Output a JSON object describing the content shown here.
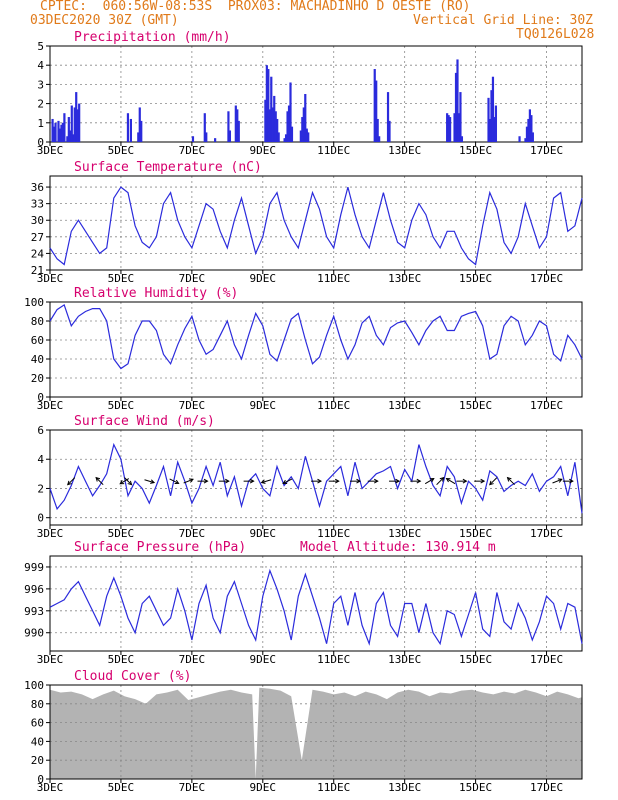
{
  "header": {
    "line1": "CPTEC:  060:56W-08:53S  PROX03: MACHADINHO D OESTE (RO)",
    "line2_left": "03DEC2020 30Z (GMT)",
    "line2_right": "Vertical Grid Line: 30Z",
    "line3_right": "TQ0126L028"
  },
  "colors": {
    "line": "#2b2bdc",
    "bar": "#2b2bdc",
    "cloud": "#b3b3b3",
    "title": "#d6006e",
    "header": "#e07a1a",
    "grid": "#888888"
  },
  "chart_data": [
    {
      "id": "precip",
      "type": "bar",
      "title": "Precipitation (mm/h)",
      "x_tick_labels": [
        "3DEC",
        "5DEC",
        "7DEC",
        "9DEC",
        "11DEC",
        "13DEC",
        "15DEC",
        "17DEC"
      ],
      "ylim": [
        0,
        5
      ],
      "yticks": [
        0,
        1,
        2,
        3,
        4,
        5
      ],
      "values_by_day": {
        "3": [
          0,
          1.2,
          0.8,
          1,
          0,
          1.1,
          0.7,
          0.9,
          1,
          1.5,
          0,
          0.3,
          1.3,
          0.6,
          1.9,
          0.4,
          1.8,
          2.6,
          1.7,
          2
        ],
        "5": [
          0,
          0,
          0,
          0,
          1.5,
          0,
          1.2,
          0,
          0,
          0,
          0,
          0.5,
          1.8,
          1.1,
          0
        ],
        "7": [
          0.3,
          0,
          0,
          0,
          0,
          0,
          0,
          0,
          1.5,
          0.5,
          0,
          0,
          0,
          0,
          0,
          0.2
        ],
        "8": [
          1.6,
          0.6,
          0,
          0,
          0,
          1.9,
          1.7,
          1.1,
          0
        ],
        "9": [
          0,
          2.2,
          4,
          3.8,
          1.7,
          3.4,
          1.8,
          2.4,
          1.6,
          1.2,
          0.5,
          0,
          0,
          0,
          0.2,
          0.4,
          1.6,
          1.9,
          3.1,
          0.8,
          0,
          0,
          0,
          0,
          0,
          0.6,
          1.3,
          1.8,
          2.5,
          0.7
        ],
        "10": [
          0,
          0,
          0.3,
          0,
          0,
          0.6,
          0.5
        ],
        "12": [
          0,
          0,
          0,
          3.8,
          3.2,
          1.2,
          0.3,
          0,
          0,
          0,
          0,
          0,
          2.6,
          1.1
        ],
        "14": [
          0,
          0,
          0,
          0,
          1.5,
          1.4,
          1.3,
          0,
          0,
          1.5,
          3.6,
          4.3,
          1.5,
          2.6,
          0.3
        ],
        "15": [
          0,
          0,
          0,
          0,
          0,
          0,
          0,
          0,
          2.3,
          1.2,
          2.7,
          3.4,
          1.3,
          1.9
        ],
        "16": [
          0,
          0,
          0,
          0,
          0,
          0.3,
          0,
          0,
          0,
          0.2,
          0.8,
          1.2,
          1.7,
          1.4,
          0.5
        ]
      }
    },
    {
      "id": "temp",
      "type": "line",
      "title": "Surface Temperature (nC)",
      "ylim": [
        21,
        38
      ],
      "yticks": [
        21,
        24,
        27,
        30,
        33,
        36
      ],
      "x": [
        3.0,
        3.2,
        3.4,
        3.6,
        3.8,
        4.0,
        4.2,
        4.4,
        4.6,
        4.8,
        5.0,
        5.2,
        5.4,
        5.6,
        5.8,
        6.0,
        6.2,
        6.4,
        6.6,
        6.8,
        7.0,
        7.2,
        7.4,
        7.6,
        7.8,
        8.0,
        8.2,
        8.4,
        8.6,
        8.8,
        9.0,
        9.2,
        9.4,
        9.6,
        9.8,
        10.0,
        10.2,
        10.4,
        10.6,
        10.8,
        11.0,
        11.2,
        11.4,
        11.6,
        11.8,
        12.0,
        12.2,
        12.4,
        12.6,
        12.8,
        13.0,
        13.2,
        13.4,
        13.6,
        13.8,
        14.0,
        14.2,
        14.4,
        14.6,
        14.8,
        15.0,
        15.2,
        15.4,
        15.6,
        15.8,
        16.0,
        16.2,
        16.4,
        16.6,
        16.8,
        17.0,
        17.2,
        17.4,
        17.6,
        17.8,
        18.0
      ],
      "y": [
        25,
        23,
        22,
        28,
        30,
        28,
        26,
        24,
        25,
        34,
        36,
        35,
        29,
        26,
        25,
        27,
        33,
        35,
        30,
        27,
        25,
        29,
        33,
        32,
        28,
        25,
        30,
        34,
        29,
        24,
        27,
        33,
        35,
        30,
        27,
        25,
        30,
        35,
        32,
        27,
        25,
        31,
        36,
        31,
        27,
        25,
        30,
        35,
        30,
        26,
        25,
        30,
        33,
        31,
        27,
        25,
        28,
        28,
        25,
        23,
        22,
        29,
        35,
        32,
        26,
        24,
        27,
        33,
        29,
        25,
        27,
        34,
        35,
        28,
        29,
        34
      ]
    },
    {
      "id": "rh",
      "type": "line",
      "title": "Relative Humidity (%)",
      "ylim": [
        0,
        100
      ],
      "yticks": [
        0,
        20,
        40,
        60,
        80,
        100
      ],
      "x": [
        3.0,
        3.2,
        3.4,
        3.6,
        3.8,
        4.0,
        4.2,
        4.4,
        4.6,
        4.8,
        5.0,
        5.2,
        5.4,
        5.6,
        5.8,
        6.0,
        6.2,
        6.4,
        6.6,
        6.8,
        7.0,
        7.2,
        7.4,
        7.6,
        7.8,
        8.0,
        8.2,
        8.4,
        8.6,
        8.8,
        9.0,
        9.2,
        9.4,
        9.6,
        9.8,
        10.0,
        10.2,
        10.4,
        10.6,
        10.8,
        11.0,
        11.2,
        11.4,
        11.6,
        11.8,
        12.0,
        12.2,
        12.4,
        12.6,
        12.8,
        13.0,
        13.2,
        13.4,
        13.6,
        13.8,
        14.0,
        14.2,
        14.4,
        14.6,
        14.8,
        15.0,
        15.2,
        15.4,
        15.6,
        15.8,
        16.0,
        16.2,
        16.4,
        16.6,
        16.8,
        17.0,
        17.2,
        17.4,
        17.6,
        17.8,
        18.0
      ],
      "y": [
        80,
        92,
        97,
        75,
        85,
        90,
        93,
        93,
        80,
        40,
        30,
        35,
        65,
        80,
        80,
        70,
        45,
        35,
        55,
        72,
        85,
        60,
        45,
        50,
        65,
        80,
        55,
        40,
        65,
        88,
        75,
        45,
        38,
        60,
        82,
        88,
        60,
        35,
        42,
        65,
        85,
        60,
        40,
        55,
        78,
        85,
        65,
        55,
        73,
        78,
        80,
        68,
        55,
        70,
        80,
        85,
        70,
        70,
        85,
        88,
        90,
        75,
        40,
        45,
        75,
        85,
        80,
        55,
        65,
        80,
        75,
        45,
        38,
        65,
        55,
        40
      ]
    },
    {
      "id": "wind",
      "type": "line",
      "title": "Surface Wind (m/s)",
      "ylim": [
        -0.5,
        6
      ],
      "yticks": [
        0,
        2,
        4,
        6
      ],
      "x": [
        3.0,
        3.2,
        3.4,
        3.6,
        3.8,
        4.0,
        4.2,
        4.4,
        4.6,
        4.8,
        5.0,
        5.2,
        5.4,
        5.6,
        5.8,
        6.0,
        6.2,
        6.4,
        6.6,
        6.8,
        7.0,
        7.2,
        7.4,
        7.6,
        7.8,
        8.0,
        8.2,
        8.4,
        8.6,
        8.8,
        9.0,
        9.2,
        9.4,
        9.6,
        9.8,
        10.0,
        10.2,
        10.4,
        10.6,
        10.8,
        11.0,
        11.2,
        11.4,
        11.6,
        11.8,
        12.0,
        12.2,
        12.4,
        12.6,
        12.8,
        13.0,
        13.2,
        13.4,
        13.6,
        13.8,
        14.0,
        14.2,
        14.4,
        14.6,
        14.8,
        15.0,
        15.2,
        15.4,
        15.6,
        15.8,
        16.0,
        16.2,
        16.4,
        16.6,
        16.8,
        17.0,
        17.2,
        17.4,
        17.6,
        17.8,
        18.0
      ],
      "y": [
        2,
        0.6,
        1.2,
        2.2,
        3.5,
        2.5,
        1.5,
        2.2,
        3,
        5,
        4,
        1.5,
        2.5,
        2,
        1,
        2.2,
        3.5,
        1.5,
        3.8,
        2.5,
        1,
        2,
        3.5,
        2.2,
        3.8,
        1.5,
        2.8,
        0.8,
        2.5,
        3,
        2,
        1.5,
        3.5,
        2.2,
        2.8,
        2,
        4.2,
        2.5,
        0.8,
        2.5,
        3,
        3.5,
        1.5,
        3.8,
        2,
        2.5,
        3,
        3.2,
        3.5,
        2,
        3.3,
        2.5,
        5,
        3.5,
        2.2,
        1.5,
        3.5,
        2.8,
        1,
        2.5,
        2,
        1.2,
        3.2,
        2.8,
        1.8,
        2.2,
        2.5,
        2.2,
        3,
        1.8,
        2.5,
        2.8,
        3.5,
        1.5,
        3.8,
        0.3
      ],
      "arrows": [
        {
          "x": 3.6,
          "u": -1,
          "v": -1
        },
        {
          "x": 4.4,
          "u": -1,
          "v": 1
        },
        {
          "x": 5.1,
          "u": -1,
          "v": -0.6
        },
        {
          "x": 5.2,
          "u": 1,
          "v": -1
        },
        {
          "x": 5.8,
          "u": 1,
          "v": -0.3
        },
        {
          "x": 6.5,
          "u": 1,
          "v": -0.5
        },
        {
          "x": 6.9,
          "u": 1,
          "v": 0.4
        },
        {
          "x": 7.3,
          "u": 1,
          "v": 0
        },
        {
          "x": 7.9,
          "u": 1,
          "v": 0
        },
        {
          "x": 8.6,
          "u": 1,
          "v": 0
        },
        {
          "x": 9.1,
          "u": -1,
          "v": -0.3
        },
        {
          "x": 9.7,
          "u": -1,
          "v": -0.5
        },
        {
          "x": 10.5,
          "u": 1,
          "v": 0
        },
        {
          "x": 11.0,
          "u": 1,
          "v": 0
        },
        {
          "x": 11.6,
          "u": 1,
          "v": 0
        },
        {
          "x": 12.1,
          "u": 1,
          "v": 0
        },
        {
          "x": 12.7,
          "u": 1,
          "v": 0
        },
        {
          "x": 13.3,
          "u": 1,
          "v": 0
        },
        {
          "x": 13.7,
          "u": 1,
          "v": 0.6
        },
        {
          "x": 14.0,
          "u": 1,
          "v": 1
        },
        {
          "x": 14.3,
          "u": -1,
          "v": 0.6
        },
        {
          "x": 14.6,
          "u": 1,
          "v": 0
        },
        {
          "x": 15.1,
          "u": 1,
          "v": 0
        },
        {
          "x": 15.5,
          "u": -1,
          "v": -1
        },
        {
          "x": 16.0,
          "u": -1,
          "v": 1
        },
        {
          "x": 17.3,
          "u": 1,
          "v": 0.4
        },
        {
          "x": 17.6,
          "u": 1,
          "v": 0
        }
      ]
    },
    {
      "id": "pres",
      "type": "line",
      "title": "Surface Pressure (hPa)",
      "extra_title": "Model Altitude: 130.914 m",
      "ylim": [
        987.5,
        1000.5
      ],
      "yticks": [
        990,
        993,
        996,
        999
      ],
      "x": [
        3.0,
        3.2,
        3.4,
        3.6,
        3.8,
        4.0,
        4.2,
        4.4,
        4.6,
        4.8,
        5.0,
        5.2,
        5.4,
        5.6,
        5.8,
        6.0,
        6.2,
        6.4,
        6.6,
        6.8,
        7.0,
        7.2,
        7.4,
        7.6,
        7.8,
        8.0,
        8.2,
        8.4,
        8.6,
        8.8,
        9.0,
        9.2,
        9.4,
        9.6,
        9.8,
        10.0,
        10.2,
        10.4,
        10.6,
        10.8,
        11.0,
        11.2,
        11.4,
        11.6,
        11.8,
        12.0,
        12.2,
        12.4,
        12.6,
        12.8,
        13.0,
        13.2,
        13.4,
        13.6,
        13.8,
        14.0,
        14.2,
        14.4,
        14.6,
        14.8,
        15.0,
        15.2,
        15.4,
        15.6,
        15.8,
        16.0,
        16.2,
        16.4,
        16.6,
        16.8,
        17.0,
        17.2,
        17.4,
        17.6,
        17.8,
        18.0
      ],
      "y": [
        993.5,
        994,
        994.5,
        996,
        997,
        995,
        993,
        991,
        995,
        997.5,
        995,
        992,
        990,
        994,
        995,
        993,
        991,
        992,
        996,
        993,
        989,
        994,
        996.5,
        992,
        990,
        995,
        997,
        994,
        991,
        989,
        995,
        998.5,
        996,
        993,
        989,
        995,
        998,
        995,
        992,
        988.5,
        994,
        995,
        991,
        995.5,
        991,
        988.5,
        994,
        995.5,
        991,
        989.5,
        994,
        994,
        990,
        994,
        990,
        988.5,
        993,
        992.5,
        989.5,
        992.5,
        995.5,
        990.5,
        989.5,
        995.5,
        991.5,
        990.5,
        994,
        992,
        989,
        991.5,
        995,
        994,
        990.5,
        994,
        993.5,
        988.5
      ]
    },
    {
      "id": "cloud",
      "type": "area",
      "title": "Cloud Cover (%)",
      "ylim": [
        0,
        100
      ],
      "yticks": [
        0,
        20,
        40,
        60,
        80,
        100
      ],
      "x": [
        3.0,
        3.3,
        3.6,
        3.9,
        4.2,
        4.5,
        4.8,
        5.1,
        5.4,
        5.7,
        6.0,
        6.3,
        6.6,
        6.9,
        7.2,
        7.5,
        7.8,
        8.1,
        8.4,
        8.7,
        8.8,
        8.9,
        9.2,
        9.5,
        9.8,
        10.1,
        10.4,
        10.7,
        11.0,
        11.3,
        11.6,
        11.9,
        12.2,
        12.5,
        12.8,
        13.1,
        13.4,
        13.7,
        14.0,
        14.3,
        14.6,
        14.9,
        15.2,
        15.5,
        15.8,
        16.1,
        16.4,
        16.7,
        17.0,
        17.3,
        17.6,
        17.9,
        18.0
      ],
      "y": [
        95,
        92,
        93,
        90,
        85,
        90,
        94,
        88,
        85,
        80,
        90,
        92,
        95,
        84,
        87,
        90,
        93,
        95,
        92,
        90,
        0,
        97,
        96,
        94,
        88,
        20,
        95,
        93,
        90,
        92,
        88,
        93,
        90,
        85,
        92,
        95,
        93,
        88,
        92,
        91,
        94,
        95,
        92,
        90,
        93,
        91,
        95,
        92,
        88,
        93,
        90,
        86,
        87
      ]
    }
  ]
}
